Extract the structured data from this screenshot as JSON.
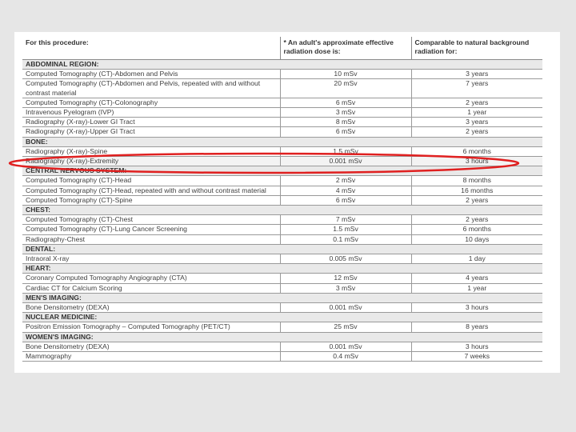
{
  "header": {
    "col1": "For this procedure:",
    "col2": "* An adult's approximate effective radiation dose is:",
    "col3": "Comparable to natural background radiation for:"
  },
  "rows": [
    {
      "type": "section",
      "label": "ABDOMINAL REGION:"
    },
    {
      "procedure": "Computed Tomography (CT)-Abdomen and Pelvis",
      "dose": "10 mSv",
      "comparable": "3 years"
    },
    {
      "procedure": "Computed Tomography (CT)-Abdomen and Pelvis, repeated with and without contrast material",
      "dose": "20 mSv",
      "comparable": "7 years",
      "tall": true
    },
    {
      "procedure": "Computed Tomography (CT)-Colonography",
      "dose": "6 mSv",
      "comparable": "2 years"
    },
    {
      "procedure": "Intravenous Pyelogram (IVP)",
      "dose": "3 mSv",
      "comparable": "1 year"
    },
    {
      "procedure": "Radiography (X-ray)-Lower GI Tract",
      "dose": "8 mSv",
      "comparable": "3 years"
    },
    {
      "procedure": "Radiography (X-ray)-Upper GI Tract",
      "dose": "6 mSv",
      "comparable": "2 years"
    },
    {
      "type": "section",
      "label": "BONE:"
    },
    {
      "procedure": "Radiography (X-ray)-Spine",
      "dose": "1.5 mSv",
      "comparable": "6 months"
    },
    {
      "procedure": "Radiography (X-ray)-Extremity",
      "dose": "0.001 mSv",
      "comparable": "3 hours"
    },
    {
      "type": "section",
      "label": "CENTRAL NERVOUS SYSTEM:"
    },
    {
      "procedure": "Computed Tomography (CT)-Head",
      "dose": "2 mSv",
      "comparable": "8 months"
    },
    {
      "procedure": "Computed Tomography (CT)-Head, repeated with and without contrast material",
      "dose": "4 mSv",
      "comparable": "16 months"
    },
    {
      "procedure": "Computed Tomography (CT)-Spine",
      "dose": "6 mSv",
      "comparable": "2 years"
    },
    {
      "type": "section",
      "label": "CHEST:"
    },
    {
      "procedure": "Computed Tomography (CT)-Chest",
      "dose": "7 mSv",
      "comparable": "2 years"
    },
    {
      "procedure": "Computed Tomography (CT)-Lung Cancer Screening",
      "dose": "1.5 mSv",
      "comparable": "6 months"
    },
    {
      "procedure": "Radiography-Chest",
      "dose": "0.1 mSv",
      "comparable": "10 days"
    },
    {
      "type": "section",
      "label": "DENTAL:"
    },
    {
      "procedure": "Intraoral X-ray",
      "dose": "0.005 mSv",
      "comparable": "1 day"
    },
    {
      "type": "section",
      "label": "HEART:"
    },
    {
      "procedure": "Coronary Computed Tomography Angiography (CTA)",
      "dose": "12 mSv",
      "comparable": "4 years"
    },
    {
      "procedure": "Cardiac CT for Calcium Scoring",
      "dose": "3 mSv",
      "comparable": "1 year"
    },
    {
      "type": "section",
      "label": "MEN'S IMAGING:"
    },
    {
      "procedure": "Bone Densitometry (DEXA)",
      "dose": "0.001 mSv",
      "comparable": "3 hours"
    },
    {
      "type": "section",
      "label": "NUCLEAR MEDICINE:"
    },
    {
      "procedure": "Positron Emission Tomography – Computed Tomography (PET/CT)",
      "dose": "25 mSv",
      "comparable": "8 years"
    },
    {
      "type": "section",
      "label": "WOMEN'S IMAGING:"
    },
    {
      "procedure": "Bone Densitometry (DEXA)",
      "dose": "0.001 mSv",
      "comparable": "3 hours"
    },
    {
      "procedure": "Mammography",
      "dose": "0.4 mSv",
      "comparable": "7 weeks"
    }
  ],
  "highlight": {
    "color": "#e02020",
    "row_index": 9
  }
}
